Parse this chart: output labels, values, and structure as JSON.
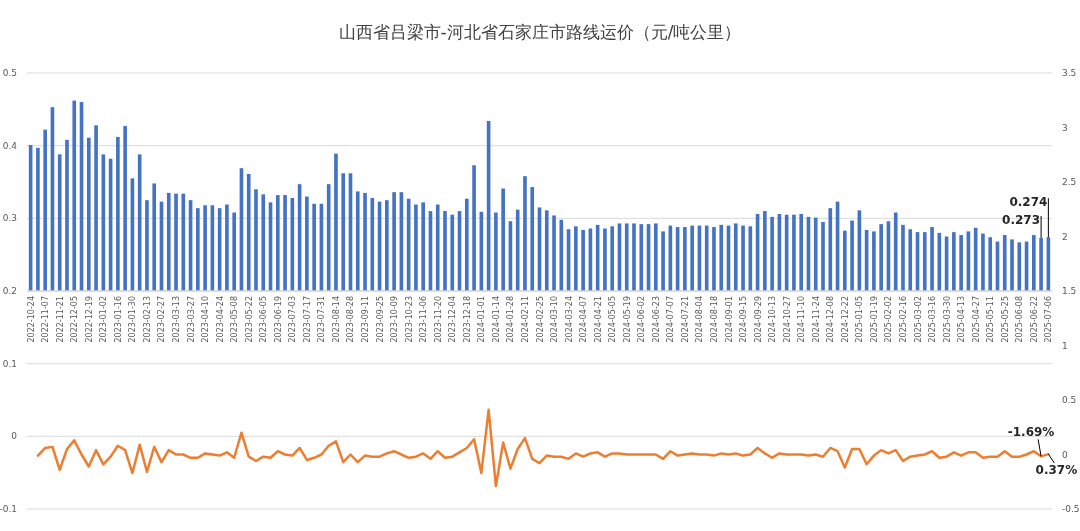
{
  "chart_data": [
    {
      "type": "bar",
      "title": "山西省吕梁市-河北省石家庄市路线运价（元/吨公里）",
      "categories": [
        "2022-10-24",
        null,
        "2022-11-07",
        null,
        "2022-11-21",
        null,
        "2022-12-05",
        null,
        "2022-12-19",
        null,
        "2023-01-02",
        null,
        "2023-01-16",
        null,
        "2023-01-30",
        null,
        "2023-02-13",
        null,
        "2023-02-27",
        null,
        "2023-03-13",
        null,
        "2023-03-27",
        null,
        "2023-04-10",
        null,
        "2023-04-24",
        null,
        "2023-05-08",
        null,
        "2023-05-22",
        null,
        "2023-06-05",
        null,
        "2023-06-19",
        null,
        "2023-07-03",
        null,
        "2023-07-17",
        null,
        "2023-07-31",
        null,
        "2023-08-14",
        null,
        "2023-08-28",
        null,
        "2023-09-11",
        null,
        "2023-09-25",
        null,
        "2023-10-09",
        null,
        "2023-10-23",
        null,
        "2023-11-06",
        null,
        "2023-11-20",
        null,
        "2023-12-04",
        null,
        "2023-12-18",
        null,
        "2024-01-01",
        null,
        "2024-01-14",
        null,
        "2024-01-28",
        null,
        "2024-02-11",
        null,
        "2024-02-25",
        null,
        "2024-03-10",
        null,
        "2024-03-24",
        null,
        "2024-04-07",
        null,
        "2024-04-21",
        null,
        "2024-05-05",
        null,
        "2024-05-19",
        null,
        "2024-06-02",
        null,
        "2024-06-23",
        null,
        "2024-07-07",
        null,
        "2024-07-21",
        null,
        "2024-08-04",
        null,
        "2024-08-18",
        null,
        "2024-09-01",
        null,
        "2024-09-15",
        null,
        "2024-09-29",
        null,
        "2024-10-13",
        null,
        "2024-10-27",
        null,
        "2024-11-10",
        null,
        "2024-11-24",
        null,
        "2024-12-08",
        null,
        "2024-12-22",
        null,
        "2025-01-05",
        null,
        "2025-01-19",
        null,
        "2025-02-02",
        null,
        "2025-02-16",
        null,
        "2025-03-02",
        null,
        "2025-03-16",
        null,
        "2025-03-30",
        null,
        "2025-04-13",
        null,
        "2025-04-27",
        null,
        "2025-05-11",
        null,
        "2025-05-25",
        null,
        "2025-06-08",
        null,
        "2025-06-22",
        null,
        "2025-07-06"
      ],
      "series": [
        {
          "color": "#4472c4",
          "values": [
            0.401,
            0.397,
            0.422,
            0.453,
            0.388,
            0.408,
            0.462,
            0.46,
            0.411,
            0.428,
            0.388,
            0.382,
            0.412,
            0.427,
            0.355,
            0.388,
            0.325,
            0.348,
            0.323,
            0.335,
            0.334,
            0.334,
            0.325,
            0.314,
            0.318,
            0.318,
            0.314,
            0.319,
            0.308,
            0.369,
            0.361,
            0.34,
            0.333,
            0.322,
            0.332,
            0.332,
            0.328,
            0.347,
            0.33,
            0.32,
            0.32,
            0.347,
            0.389,
            0.362,
            0.362,
            0.337,
            0.335,
            0.328,
            0.323,
            0.325,
            0.336,
            0.336,
            0.327,
            0.319,
            0.322,
            0.31,
            0.319,
            0.31,
            0.305,
            0.31,
            0.327,
            0.373,
            0.309,
            0.434,
            0.308,
            0.341,
            0.296,
            0.312,
            0.358,
            0.343,
            0.315,
            0.311,
            0.304,
            0.298,
            0.285,
            0.289,
            0.284,
            0.286,
            0.291,
            0.286,
            0.289,
            0.293,
            0.293,
            0.293,
            0.292,
            0.292,
            0.293,
            0.282,
            0.29,
            0.288,
            0.288,
            0.29,
            0.29,
            0.29,
            0.288,
            0.291,
            0.29,
            0.293,
            0.29,
            0.289,
            0.306,
            0.31,
            0.302,
            0.306,
            0.305,
            0.305,
            0.306,
            0.302,
            0.301,
            0.295,
            0.314,
            0.323,
            0.283,
            0.297,
            0.311,
            0.284,
            0.282,
            0.292,
            0.296,
            0.308,
            0.291,
            0.285,
            0.281,
            0.281,
            0.288,
            0.28,
            0.275,
            0.281,
            0.277,
            0.282,
            0.287,
            0.279,
            0.274,
            0.268,
            0.277,
            0.271,
            0.267,
            0.268,
            0.277,
            0.273,
            0.274
          ],
          "value_labels": [
            null,
            null,
            null,
            null,
            null,
            null,
            null,
            null,
            null,
            null,
            null,
            null,
            null,
            null,
            null,
            null,
            null,
            null,
            null,
            null,
            null,
            null,
            null,
            null,
            null,
            null,
            null,
            null,
            null,
            null,
            null,
            null,
            null,
            null,
            null,
            null,
            null,
            null,
            null,
            null,
            null,
            null,
            null,
            null,
            null,
            null,
            null,
            null,
            null,
            null,
            null,
            null,
            null,
            null,
            null,
            null,
            null,
            null,
            null,
            null,
            null,
            null,
            null,
            null,
            null,
            null,
            null,
            null,
            null,
            null,
            null,
            null,
            null,
            null,
            null,
            null,
            null,
            null,
            null,
            null,
            null,
            null,
            null,
            null,
            null,
            null,
            null,
            null,
            null,
            null,
            null,
            null,
            null,
            null,
            null,
            null,
            null,
            null,
            null,
            null,
            null,
            null,
            null,
            null,
            null,
            null,
            null,
            null,
            null,
            null,
            null,
            null,
            null,
            null,
            null,
            null,
            null,
            null,
            null,
            null,
            null,
            null,
            null,
            null,
            null,
            null,
            null,
            null,
            null,
            null,
            null,
            null,
            null,
            null,
            null,
            null,
            null,
            null,
            null,
            "0.273",
            "0.274"
          ]
        }
      ],
      "ylim": [
        0.2,
        0.5
      ],
      "yticks": [
        0.2,
        0.3,
        0.4,
        0.5
      ],
      "y2lim": [
        1.5,
        3.5
      ],
      "y2ticks": [
        1.5,
        2,
        2.5,
        3,
        3.5
      ],
      "grid": "y"
    },
    {
      "type": "line",
      "categories": [
        null,
        null,
        null,
        null,
        null,
        null,
        null,
        null,
        null,
        null,
        null,
        null,
        null,
        null,
        null,
        null,
        null,
        null,
        null,
        null,
        null,
        null,
        null,
        null,
        null,
        null,
        null,
        null,
        null,
        null,
        null,
        null,
        null,
        null,
        null,
        null,
        null,
        null,
        null,
        null,
        null,
        null,
        null,
        null,
        null,
        null,
        null,
        null,
        null,
        null,
        null,
        null,
        null,
        null,
        null,
        null,
        null,
        null,
        null,
        null,
        null,
        null,
        null,
        null,
        null,
        null,
        null,
        null,
        null,
        null,
        null,
        null,
        null,
        null,
        null,
        null,
        null,
        null,
        null,
        null,
        null,
        null,
        null,
        null,
        null,
        null,
        null,
        null,
        null,
        null,
        null,
        null,
        null,
        null,
        null,
        null,
        null,
        null,
        null,
        null,
        null,
        null,
        null,
        null,
        null,
        null,
        null,
        null,
        null,
        null,
        null,
        null,
        null,
        null,
        null,
        null,
        null,
        null,
        null,
        null,
        null,
        null,
        null,
        null,
        null,
        null,
        null,
        null,
        null,
        null,
        null,
        null,
        null,
        null,
        null,
        null,
        null,
        null,
        null,
        null,
        null
      ],
      "series": [
        {
          "color": "#ed7d31",
          "axis": "y2",
          "values": [
            null,
            -0.01,
            0.06,
            0.07,
            -0.14,
            0.05,
            0.13,
            0,
            -0.11,
            0.04,
            -0.09,
            -0.02,
            0.08,
            0.04,
            -0.17,
            0.09,
            -0.16,
            0.07,
            -0.07,
            0.04,
            0,
            0,
            -0.03,
            -0.03,
            0.01,
            0,
            -0.01,
            0.02,
            -0.03,
            0.2,
            -0.02,
            -0.06,
            -0.02,
            -0.03,
            0.03,
            0,
            -0.01,
            0.06,
            -0.05,
            -0.03,
            0,
            0.08,
            0.12,
            -0.07,
            0,
            -0.07,
            -0.01,
            -0.02,
            -0.02,
            0.01,
            0.03,
            0,
            -0.03,
            -0.02,
            0.01,
            -0.04,
            0.03,
            -0.03,
            -0.02,
            0.02,
            0.06,
            0.14,
            -0.17,
            0.41,
            -0.29,
            0.11,
            -0.13,
            0.05,
            0.15,
            -0.04,
            -0.08,
            -0.01,
            -0.02,
            -0.02,
            -0.04,
            0.01,
            -0.02,
            0.01,
            0.02,
            -0.02,
            0.01,
            0.01,
            0,
            0,
            0,
            0,
            0,
            -0.04,
            0.03,
            -0.01,
            0,
            0.01,
            0,
            0,
            -0.01,
            0.01,
            0,
            0.01,
            -0.01,
            0,
            0.06,
            0.01,
            -0.03,
            0.01,
            0,
            0,
            0,
            -0.01,
            0,
            -0.02,
            0.06,
            0.03,
            -0.12,
            0.05,
            0.05,
            -0.09,
            -0.01,
            0.04,
            0.01,
            0.04,
            -0.06,
            -0.02,
            -0.01,
            0,
            0.03,
            -0.03,
            -0.02,
            0.02,
            -0.01,
            0.02,
            0.02,
            -0.03,
            -0.02,
            -0.02,
            0.03,
            -0.02,
            -0.02,
            0,
            0.03,
            -0.0169,
            0.0037
          ],
          "value_labels": [
            null,
            null,
            null,
            null,
            null,
            null,
            null,
            null,
            null,
            null,
            null,
            null,
            null,
            null,
            null,
            null,
            null,
            null,
            null,
            null,
            null,
            null,
            null,
            null,
            null,
            null,
            null,
            null,
            null,
            null,
            null,
            null,
            null,
            null,
            null,
            null,
            null,
            null,
            null,
            null,
            null,
            null,
            null,
            null,
            null,
            null,
            null,
            null,
            null,
            null,
            null,
            null,
            null,
            null,
            null,
            null,
            null,
            null,
            null,
            null,
            null,
            null,
            null,
            null,
            null,
            null,
            null,
            null,
            null,
            null,
            null,
            null,
            null,
            null,
            null,
            null,
            null,
            null,
            null,
            null,
            null,
            null,
            null,
            null,
            null,
            null,
            null,
            null,
            null,
            null,
            null,
            null,
            null,
            null,
            null,
            null,
            null,
            null,
            null,
            null,
            null,
            null,
            null,
            null,
            null,
            null,
            null,
            null,
            null,
            null,
            null,
            null,
            null,
            null,
            null,
            null,
            null,
            null,
            null,
            null,
            null,
            null,
            null,
            null,
            null,
            null,
            null,
            null,
            null,
            null,
            null,
            null,
            null,
            null,
            null,
            null,
            null,
            null,
            null,
            "-1.69%",
            "0.37%"
          ]
        }
      ],
      "ylim": [
        -0.1,
        0.2
      ],
      "yticks": [
        -0.1,
        0,
        0.1
      ],
      "y2lim": [
        -0.5,
        1.5
      ],
      "y2ticks": [
        -0.5,
        0,
        0.5,
        1
      ],
      "grid": "y",
      "tick_labels": "y",
      "marker": "none",
      "line_style": "solid"
    }
  ]
}
